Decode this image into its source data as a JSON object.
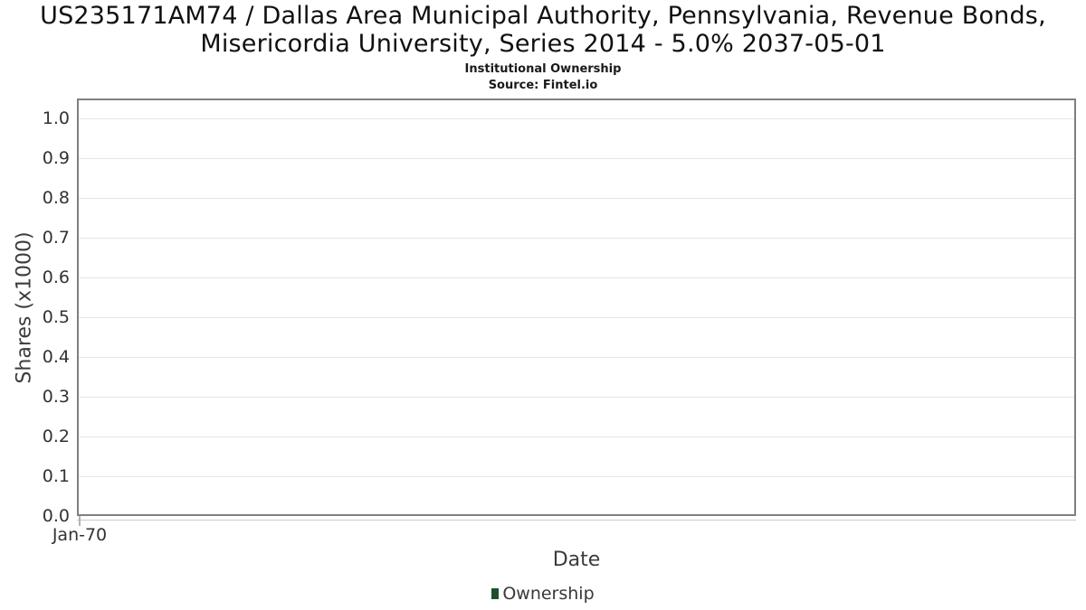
{
  "header": {
    "title_line1": "US235171AM74 / Dallas Area Municipal Authority, Pennsylvania, Revenue Bonds,",
    "title_line2": "Misericordia University, Series 2014 - 5.0% 2037-05-01",
    "subtitle": "Institutional Ownership",
    "source": "Source: Fintel.io"
  },
  "chart_data": {
    "type": "line",
    "title": "US235171AM74 / Dallas Area Municipal Authority, Pennsylvania, Revenue Bonds, Misericordia University, Series 2014 - 5.0% 2037-05-01",
    "subtitle": "Institutional Ownership",
    "source": "Source: Fintel.io",
    "xlabel": "Date",
    "ylabel": "Shares (x1000)",
    "x_tick_labels": [
      "Jan-70"
    ],
    "y_tick_labels": [
      "1.0",
      "0.9",
      "0.8",
      "0.7",
      "0.6",
      "0.5",
      "0.4",
      "0.3",
      "0.2",
      "0.1",
      "0.0"
    ],
    "ylim": [
      0.0,
      1.05
    ],
    "grid": "horizontal",
    "legend": {
      "position": "bottom",
      "entries": [
        {
          "label": "Ownership",
          "color": "#1e4f2d"
        }
      ]
    },
    "series": [
      {
        "name": "Ownership",
        "x": [],
        "y": []
      }
    ]
  },
  "colors": {
    "background": "#ffffff",
    "title": "#101010",
    "plot_border": "#7f7f7f",
    "gridline": "#e5e5e5",
    "axis_line": "#cccccc",
    "tick_label": "#333333",
    "axis_label": "#3c3c3c",
    "legend_marker": "#1e4f2d"
  }
}
